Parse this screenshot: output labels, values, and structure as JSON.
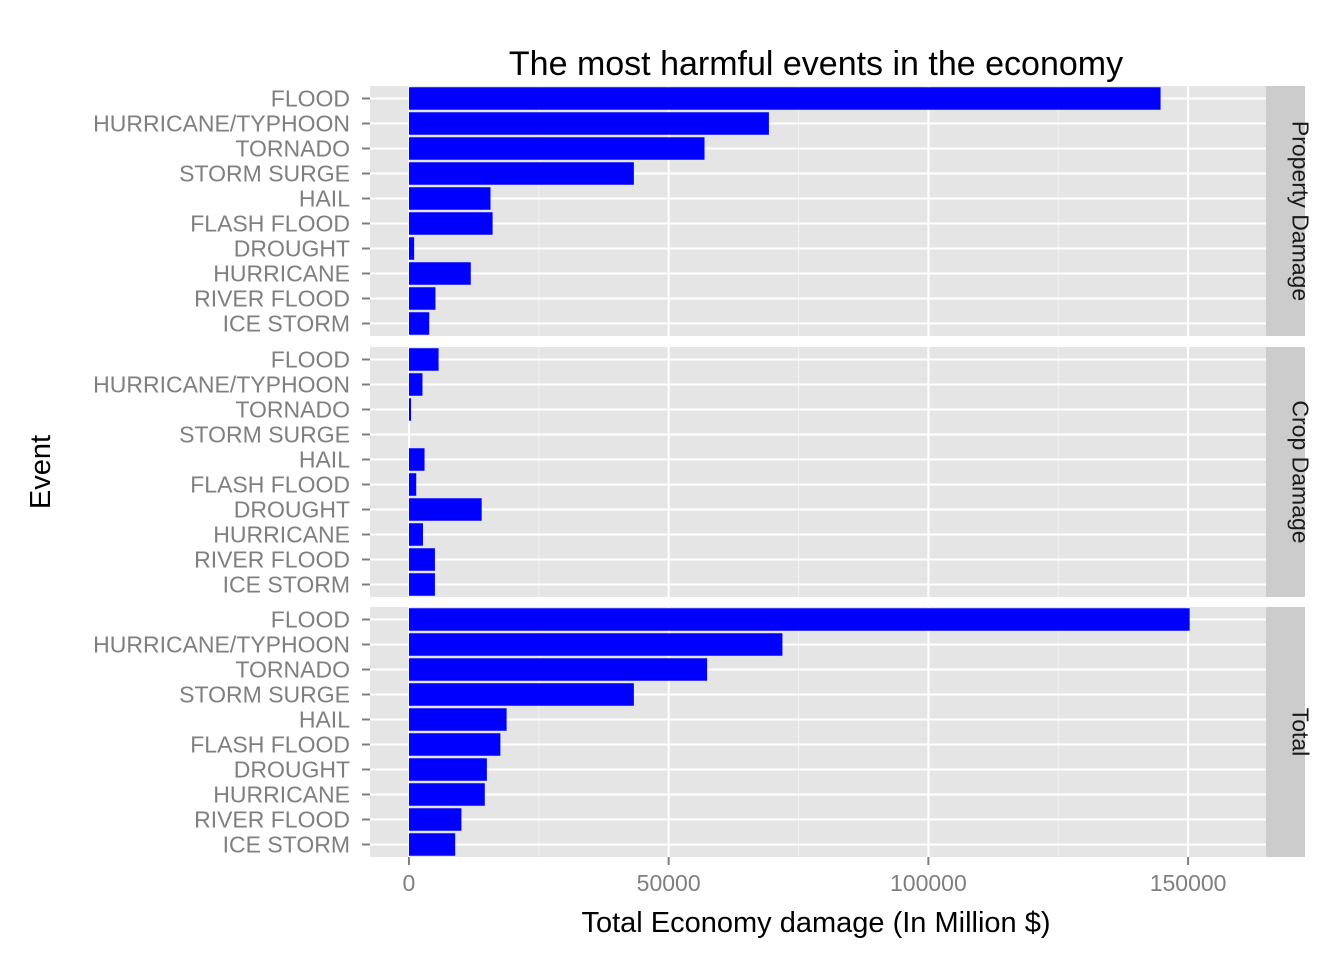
{
  "chart_data": {
    "type": "bar",
    "orientation": "horizontal",
    "title": "The most harmful events in the economy",
    "xlabel": "Total Economy damage (In Million $)",
    "ylabel": "Event",
    "xlim": [
      -7500,
      165000
    ],
    "x_ticks": [
      0,
      50000,
      100000,
      150000
    ],
    "x_tick_labels": [
      "0",
      "50000",
      "100000",
      "150000"
    ],
    "grid": true,
    "bar_color": "#0000ff",
    "panel_background": "#e5e5e5",
    "strip_background": "#cccccc",
    "categories": [
      "FLOOD",
      "HURRICANE/TYPHOON",
      "TORNADO",
      "STORM SURGE",
      "HAIL",
      "FLASH FLOOD",
      "DROUGHT",
      "HURRICANE",
      "RIVER FLOOD",
      "ICE STORM"
    ],
    "series": [
      {
        "name": "Property Damage",
        "values": [
          144700,
          69300,
          56900,
          43300,
          15700,
          16100,
          1000,
          11900,
          5100,
          3900
        ]
      },
      {
        "name": "Crop Damage",
        "values": [
          5700,
          2600,
          400,
          0,
          3000,
          1400,
          14000,
          2700,
          5000,
          5000
        ]
      },
      {
        "name": "Total",
        "values": [
          150300,
          71900,
          57400,
          43300,
          18800,
          17600,
          15000,
          14600,
          10100,
          8900
        ]
      }
    ]
  }
}
